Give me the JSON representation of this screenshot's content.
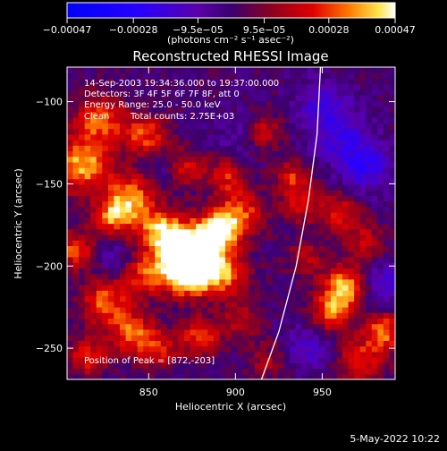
{
  "chart_data": {
    "type": "heatmap",
    "title": "Reconstructed RHESSI Image",
    "xlabel": "Heliocentric X (arcsec)",
    "ylabel": "Heliocentric Y (arcsec)",
    "xlim": [
      803,
      992
    ],
    "ylim": [
      -269,
      -79
    ],
    "x_ticks": [
      {
        "v": 850,
        "label": "850"
      },
      {
        "v": 900,
        "label": "900"
      },
      {
        "v": 950,
        "label": "950"
      }
    ],
    "y_ticks": [
      {
        "v": -100,
        "label": "−100"
      },
      {
        "v": -150,
        "label": "−150"
      },
      {
        "v": -200,
        "label": "−200"
      },
      {
        "v": -250,
        "label": "−250"
      }
    ],
    "colorbar": {
      "range": [
        -0.00047,
        0.00047
      ],
      "ticks": [
        {
          "v": -0.00047,
          "label": "−0.00047"
        },
        {
          "v": -0.00028,
          "label": "−0.00028"
        },
        {
          "v": -9.5e-05,
          "label": "−9.5e−05"
        },
        {
          "v": 9.5e-05,
          "label": "9.5e−05"
        },
        {
          "v": 0.00028,
          "label": "0.00028"
        },
        {
          "v": 0.00047,
          "label": "0.00047"
        }
      ],
      "units_label": "(photons cm⁻² s⁻¹ asec⁻²)"
    },
    "annotations": {
      "date": "14-Sep-2003 19:34:36.000 to 19:37:00.000",
      "detectors": "Detectors: 3F 4F 5F 6F 7F 8F, att 0",
      "energy": "Energy Range: 25.0 - 50.0 keV",
      "clean_label": "Clean",
      "counts": "Total counts: 2.75E+03",
      "peak": "Position of Peak = [872,-203]"
    },
    "peak": {
      "x": 872,
      "y": -203
    },
    "grid": false,
    "limb_curve": [
      [
        915,
        -269
      ],
      [
        925,
        -240
      ],
      [
        935,
        -200
      ],
      [
        942,
        -160
      ],
      [
        947,
        -120
      ],
      [
        949,
        -79
      ]
    ],
    "blobs": [
      {
        "x": 872,
        "y": -203,
        "a": 0.9,
        "s": 9
      },
      {
        "x": 877,
        "y": -196,
        "a": 0.75,
        "s": 13
      },
      {
        "x": 890,
        "y": -178,
        "a": 0.8,
        "s": 8
      },
      {
        "x": 872,
        "y": -188,
        "a": 0.6,
        "s": 10
      },
      {
        "x": 856,
        "y": -178,
        "a": 0.7,
        "s": 9
      },
      {
        "x": 840,
        "y": -158,
        "a": 0.65,
        "s": 10
      },
      {
        "x": 830,
        "y": -170,
        "a": 0.6,
        "s": 8
      },
      {
        "x": 812,
        "y": -138,
        "a": 0.75,
        "s": 12
      },
      {
        "x": 822,
        "y": -110,
        "a": 0.6,
        "s": 10
      },
      {
        "x": 848,
        "y": -120,
        "a": 0.55,
        "s": 9
      },
      {
        "x": 870,
        "y": -140,
        "a": 0.5,
        "s": 8
      },
      {
        "x": 903,
        "y": -168,
        "a": 0.55,
        "s": 10
      },
      {
        "x": 895,
        "y": -145,
        "a": 0.45,
        "s": 8
      },
      {
        "x": 915,
        "y": -118,
        "a": 0.5,
        "s": 8
      },
      {
        "x": 933,
        "y": -145,
        "a": 0.45,
        "s": 7
      },
      {
        "x": 938,
        "y": -162,
        "a": 0.4,
        "s": 8
      },
      {
        "x": 960,
        "y": -168,
        "a": 0.45,
        "s": 9
      },
      {
        "x": 975,
        "y": -185,
        "a": 0.35,
        "s": 8
      },
      {
        "x": 963,
        "y": -212,
        "a": 0.75,
        "s": 9
      },
      {
        "x": 955,
        "y": -228,
        "a": 0.6,
        "s": 8
      },
      {
        "x": 985,
        "y": -240,
        "a": 0.65,
        "s": 8
      },
      {
        "x": 972,
        "y": -258,
        "a": 0.5,
        "s": 9
      },
      {
        "x": 825,
        "y": -222,
        "a": 0.6,
        "s": 10
      },
      {
        "x": 840,
        "y": -240,
        "a": 0.55,
        "s": 9
      },
      {
        "x": 815,
        "y": -255,
        "a": 0.5,
        "s": 8
      },
      {
        "x": 855,
        "y": -250,
        "a": 0.45,
        "s": 9
      },
      {
        "x": 880,
        "y": -243,
        "a": 0.55,
        "s": 8
      },
      {
        "x": 903,
        "y": -232,
        "a": 0.35,
        "s": 8
      },
      {
        "x": 918,
        "y": -257,
        "a": 0.3,
        "s": 8
      },
      {
        "x": 895,
        "y": -205,
        "a": 0.5,
        "s": 9
      },
      {
        "x": 848,
        "y": -205,
        "a": 0.5,
        "s": 9
      },
      {
        "x": 808,
        "y": -190,
        "a": 0.55,
        "s": 8
      },
      {
        "x": 940,
        "y": -195,
        "a": 0.35,
        "s": 7
      },
      {
        "x": 960,
        "y": -120,
        "a": -0.35,
        "s": 12
      },
      {
        "x": 975,
        "y": -140,
        "a": -0.45,
        "s": 10
      },
      {
        "x": 950,
        "y": -100,
        "a": -0.3,
        "s": 10
      },
      {
        "x": 985,
        "y": -210,
        "a": -0.35,
        "s": 9
      },
      {
        "x": 940,
        "y": -250,
        "a": -0.3,
        "s": 9
      },
      {
        "x": 905,
        "y": -120,
        "a": -0.25,
        "s": 10
      },
      {
        "x": 860,
        "y": -140,
        "a": -0.3,
        "s": 7
      },
      {
        "x": 830,
        "y": -195,
        "a": -0.2,
        "s": 7
      }
    ]
  },
  "footer": {
    "date": "5-May-2022 10:22"
  }
}
